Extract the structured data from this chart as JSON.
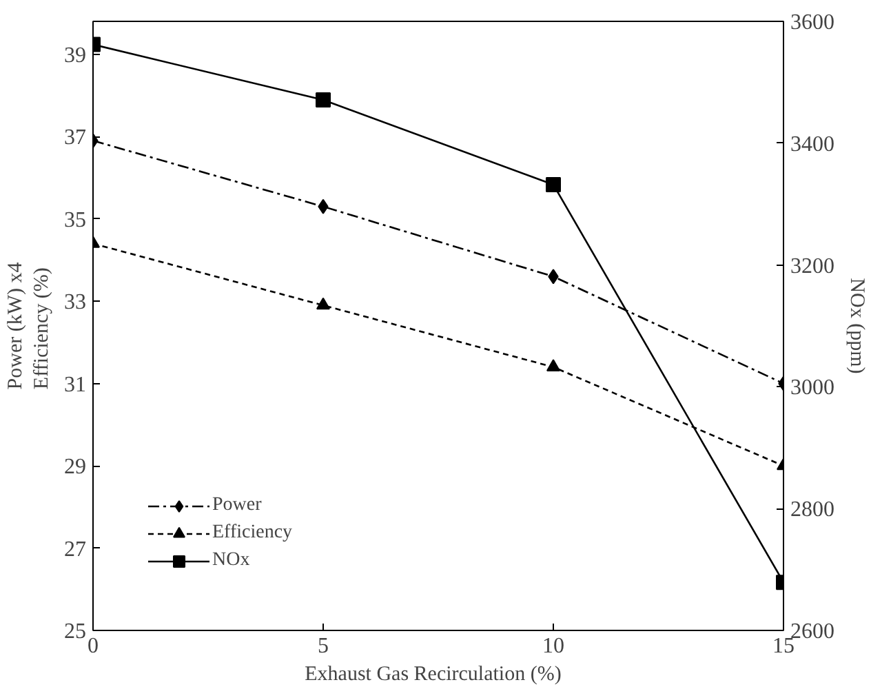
{
  "chart_data": {
    "type": "line",
    "xlabel": "Exhaust  Gas Recirculation  (%)",
    "ylabel": "Power (kW) x4\nEfficiency  (%)",
    "y2label": "NOx (ppm)",
    "x": [
      0,
      5,
      10,
      15
    ],
    "xlim": [
      0,
      15
    ],
    "xticks": [
      0,
      5,
      10,
      15
    ],
    "ylim": [
      25,
      39.8
    ],
    "yticks": [
      25,
      27,
      29,
      31,
      33,
      35,
      37,
      39
    ],
    "y2lim": [
      2600,
      3600
    ],
    "y2ticks": [
      2600,
      2800,
      3000,
      3200,
      3400,
      3600
    ],
    "grid": false,
    "legend": "bottom left",
    "series": [
      {
        "name": "Power",
        "color": "#000000",
        "values": [
          36.9,
          35.3,
          33.6,
          31.0
        ],
        "marker": "diamond",
        "line_style": "dashdot"
      },
      {
        "name": "Efficiency",
        "color": "#000000",
        "values": [
          34.4,
          32.9,
          31.4,
          29.0
        ],
        "marker": "triangle",
        "line_style": "dashed"
      },
      {
        "name": "NOx",
        "color": "#000000",
        "values": [
          3562,
          3471,
          3332,
          2679
        ],
        "marker": "square",
        "line_style": "solid",
        "axis": "y2"
      }
    ]
  }
}
